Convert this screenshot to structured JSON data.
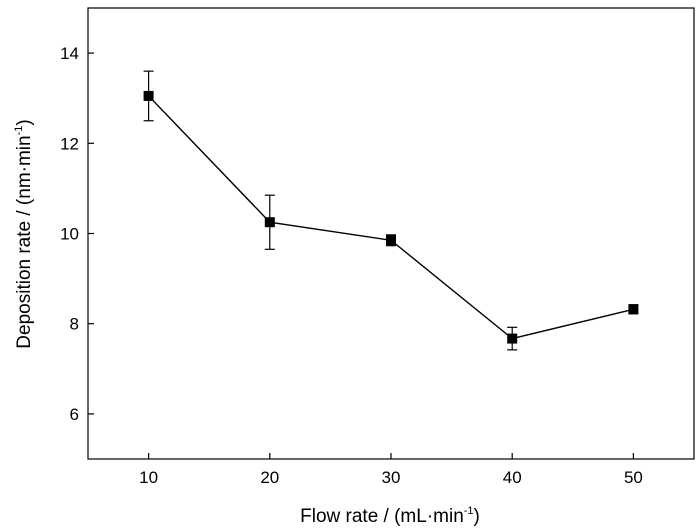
{
  "chart_data": {
    "type": "line",
    "title": "",
    "xlabel": "Flow rate / (mL·min",
    "xlabel_sup": "-1",
    "xlabel_tail": ")",
    "ylabel": "Deposition rate / (nm·min",
    "ylabel_sup": "-1",
    "ylabel_tail": ")",
    "xlim": [
      5,
      55
    ],
    "ylim": [
      5,
      15
    ],
    "xticks": [
      10,
      20,
      30,
      40,
      50
    ],
    "yticks": [
      6,
      8,
      10,
      12,
      14
    ],
    "grid": false,
    "legend": "none",
    "series": [
      {
        "x": [
          10,
          20,
          30,
          40,
          50
        ],
        "y": [
          13.05,
          10.25,
          9.85,
          7.67,
          8.32
        ],
        "error": [
          0.55,
          0.6,
          0.12,
          0.25,
          0.1
        ],
        "marker": "square",
        "color": "#000000"
      }
    ]
  }
}
